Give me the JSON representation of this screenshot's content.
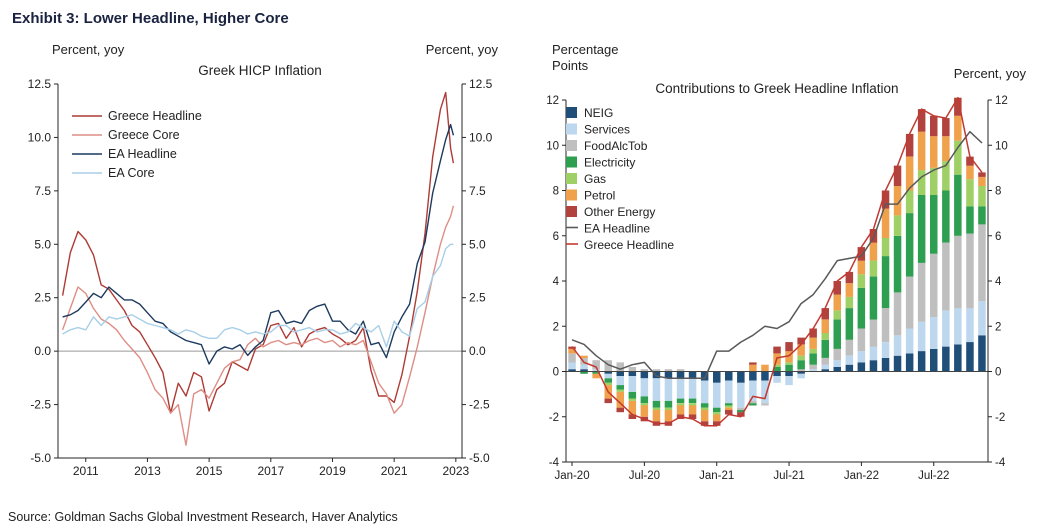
{
  "page": {
    "exhibit_title": "Exhibit 3: Lower Headline, Higher Core",
    "source": "Source: Goldman Sachs Global Investment Research, Haver Analytics"
  },
  "chart_data": [
    {
      "type": "line",
      "title": "Greek HICP Inflation",
      "left_axis_label": "Percent, yoy",
      "right_axis_label": "Percent, yoy",
      "ylim": [
        -5,
        12.5
      ],
      "yticks": [
        -5.0,
        -2.5,
        0.0,
        2.5,
        5.0,
        7.5,
        10.0,
        12.5
      ],
      "xlim": [
        2010.1,
        2023.2
      ],
      "xticks": [
        2011,
        2013,
        2015,
        2017,
        2019,
        2021,
        2023
      ],
      "grid": false,
      "legend_position": "top-left",
      "x": [
        2010.25,
        2010.5,
        2010.75,
        2011,
        2011.25,
        2011.5,
        2011.75,
        2012,
        2012.25,
        2012.5,
        2012.75,
        2013,
        2013.25,
        2013.5,
        2013.75,
        2014,
        2014.25,
        2014.5,
        2014.75,
        2015,
        2015.25,
        2015.5,
        2015.75,
        2016,
        2016.25,
        2016.5,
        2016.75,
        2017,
        2017.25,
        2017.5,
        2017.75,
        2018,
        2018.25,
        2018.5,
        2018.75,
        2019,
        2019.25,
        2019.5,
        2019.75,
        2020,
        2020.25,
        2020.5,
        2020.75,
        2021,
        2021.25,
        2021.5,
        2021.75,
        2022,
        2022.25,
        2022.5,
        2022.67,
        2022.83,
        2022.92
      ],
      "series": [
        {
          "name": "Greece Headline",
          "color": "#AE3B35",
          "values": [
            2.6,
            4.6,
            5.6,
            5.2,
            4.5,
            3.1,
            2.9,
            2.4,
            1.9,
            1.2,
            0.9,
            0.3,
            -0.3,
            -1.0,
            -2.9,
            -1.5,
            -2.1,
            -1.0,
            -1.2,
            -2.8,
            -1.8,
            -1.5,
            -0.5,
            -0.7,
            -0.9,
            0.1,
            0.3,
            1.2,
            1.3,
            0.6,
            1.1,
            0.2,
            0.8,
            1.0,
            1.1,
            0.8,
            0.6,
            0.3,
            0.5,
            1.1,
            -0.9,
            -2.1,
            -2.1,
            -2.4,
            -1.1,
            0.7,
            2.8,
            5.5,
            9.1,
            11.3,
            12.1,
            9.5,
            8.8
          ]
        },
        {
          "name": "Greece Core",
          "color": "#DE8E85",
          "values": [
            1.0,
            2.0,
            3.0,
            2.7,
            2.0,
            1.5,
            1.3,
            1.0,
            0.5,
            0.1,
            -0.3,
            -1.0,
            -1.8,
            -2.2,
            -2.9,
            -2.5,
            -4.4,
            -2.0,
            -1.8,
            -2.2,
            -1.5,
            -0.8,
            -0.5,
            -0.4,
            0.3,
            0.6,
            0.2,
            0.4,
            0.5,
            0.3,
            0.4,
            0.3,
            0.5,
            0.6,
            0.4,
            0.5,
            0.2,
            0.4,
            0.3,
            0.5,
            -0.5,
            -1.5,
            -2.0,
            -2.9,
            -2.5,
            -1.2,
            0.2,
            1.8,
            3.5,
            5.0,
            5.8,
            6.3,
            6.8
          ]
        },
        {
          "name": "EA Headline",
          "color": "#1C3A5E",
          "values": [
            1.6,
            1.7,
            1.9,
            2.3,
            2.7,
            2.5,
            3.0,
            2.7,
            2.4,
            2.4,
            2.2,
            1.8,
            1.4,
            1.3,
            0.9,
            0.7,
            0.5,
            0.4,
            0.3,
            -0.6,
            0.0,
            0.2,
            0.1,
            0.3,
            -0.2,
            0.2,
            0.5,
            1.8,
            1.9,
            1.3,
            1.4,
            1.3,
            1.9,
            2.1,
            2.2,
            1.4,
            1.4,
            1.0,
            0.8,
            1.4,
            0.3,
            0.4,
            -0.3,
            0.9,
            1.6,
            2.2,
            4.1,
            5.1,
            7.4,
            8.9,
            9.9,
            10.6,
            10.1
          ]
        },
        {
          "name": "EA Core",
          "color": "#A8CFE8",
          "values": [
            0.8,
            1.0,
            1.1,
            1.0,
            1.6,
            1.2,
            1.6,
            1.5,
            1.6,
            1.7,
            1.5,
            1.3,
            1.2,
            1.1,
            1.0,
            0.8,
            1.0,
            0.9,
            0.7,
            0.6,
            0.6,
            1.0,
            1.1,
            1.0,
            0.8,
            0.9,
            0.8,
            0.9,
            1.2,
            1.2,
            0.9,
            1.0,
            1.1,
            0.9,
            1.0,
            1.0,
            0.8,
            0.9,
            1.3,
            1.1,
            0.9,
            1.2,
            0.2,
            1.4,
            0.9,
            0.7,
            2.0,
            2.3,
            3.5,
            4.0,
            4.8,
            5.0,
            5.0
          ]
        }
      ]
    },
    {
      "type": "stacked-bar-with-lines",
      "title": "Contributions to Greek Headline Inflation",
      "left_axis_label_line1": "Percentage",
      "left_axis_label_line2": "Points",
      "right_axis_label": "Percent, yoy",
      "ylim": [
        -4,
        12
      ],
      "yticks": [
        -4,
        -2,
        0,
        2,
        4,
        6,
        8,
        10,
        12
      ],
      "grid": false,
      "legend_position": "top-left",
      "categories": [
        "Jan-20",
        "Feb-20",
        "Mar-20",
        "Apr-20",
        "May-20",
        "Jun-20",
        "Jul-20",
        "Aug-20",
        "Sep-20",
        "Oct-20",
        "Nov-20",
        "Dec-20",
        "Jan-21",
        "Feb-21",
        "Mar-21",
        "Apr-21",
        "May-21",
        "Jun-21",
        "Jul-21",
        "Aug-21",
        "Sep-21",
        "Oct-21",
        "Nov-21",
        "Dec-21",
        "Jan-22",
        "Feb-22",
        "Mar-22",
        "Apr-22",
        "May-22",
        "Jun-22",
        "Jul-22",
        "Aug-22",
        "Sep-22",
        "Oct-22",
        "Nov-22"
      ],
      "xticks": [
        "Jan-20",
        "Jul-20",
        "Jan-21",
        "Jul-21",
        "Jan-22",
        "Jul-22"
      ],
      "bar_series": [
        {
          "name": "NEIG",
          "color": "#1F4E79",
          "values": [
            0.1,
            0.1,
            0.0,
            -0.1,
            -0.2,
            -0.2,
            -0.3,
            -0.3,
            -0.3,
            -0.3,
            -0.3,
            -0.4,
            -0.5,
            -0.4,
            -0.5,
            -0.4,
            -0.4,
            -0.2,
            -0.2,
            -0.1,
            0.0,
            0.1,
            0.2,
            0.3,
            0.4,
            0.5,
            0.6,
            0.7,
            0.8,
            0.9,
            1.0,
            1.1,
            1.2,
            1.3,
            1.6
          ]
        },
        {
          "name": "Services",
          "color": "#BDD7EE",
          "values": [
            0.3,
            0.2,
            0.1,
            -0.2,
            -0.4,
            -0.7,
            -0.8,
            -1.0,
            -1.0,
            -0.9,
            -0.9,
            -1.0,
            -1.1,
            -1.0,
            -1.1,
            -0.9,
            -1.0,
            -0.3,
            -0.4,
            -0.2,
            0.1,
            0.2,
            0.3,
            0.4,
            0.5,
            0.6,
            0.7,
            0.9,
            1.1,
            1.3,
            1.4,
            1.6,
            1.6,
            1.5,
            1.5
          ]
        },
        {
          "name": "FoodAlcTob",
          "color": "#BFBFBF",
          "values": [
            0.4,
            0.3,
            0.4,
            0.5,
            0.4,
            0.2,
            0.1,
            0.1,
            0.1,
            0.1,
            0.0,
            0.0,
            0.0,
            0.0,
            -0.1,
            -0.1,
            -0.1,
            0.0,
            0.0,
            0.1,
            0.2,
            0.3,
            0.5,
            0.7,
            1.0,
            1.2,
            1.5,
            1.9,
            2.3,
            2.6,
            2.8,
            3.0,
            3.2,
            3.3,
            3.4
          ]
        },
        {
          "name": "Electricity",
          "color": "#2E9E50",
          "values": [
            0.0,
            -0.1,
            -0.1,
            -0.2,
            -0.2,
            -0.3,
            -0.3,
            -0.3,
            -0.3,
            -0.2,
            -0.2,
            -0.2,
            -0.2,
            -0.1,
            -0.1,
            -0.1,
            0.0,
            0.2,
            0.3,
            0.4,
            0.5,
            0.8,
            1.3,
            1.4,
            1.8,
            1.9,
            2.3,
            2.5,
            2.8,
            3.0,
            2.6,
            2.3,
            2.7,
            1.2,
            0.8
          ]
        },
        {
          "name": "Gas",
          "color": "#9FD066",
          "values": [
            0.0,
            0.0,
            0.0,
            -0.1,
            -0.1,
            -0.1,
            -0.1,
            -0.1,
            -0.1,
            -0.1,
            -0.1,
            -0.1,
            -0.1,
            -0.1,
            0.0,
            0.0,
            0.0,
            0.1,
            0.1,
            0.2,
            0.2,
            0.3,
            0.4,
            0.5,
            0.6,
            0.7,
            0.8,
            0.9,
            1.0,
            1.1,
            1.2,
            1.3,
            1.5,
            1.2,
            0.9
          ]
        },
        {
          "name": "Petrol",
          "color": "#F0A14C",
          "values": [
            0.2,
            0.1,
            -0.2,
            -0.6,
            -0.7,
            -0.6,
            -0.5,
            -0.5,
            -0.5,
            -0.4,
            -0.4,
            -0.5,
            -0.3,
            -0.1,
            0.0,
            0.3,
            0.3,
            0.5,
            0.5,
            0.5,
            0.5,
            0.6,
            0.7,
            0.6,
            0.6,
            0.8,
            1.3,
            1.3,
            1.5,
            1.7,
            1.4,
            1.1,
            1.1,
            0.6,
            0.4
          ]
        },
        {
          "name": "Other Energy",
          "color": "#B2423E",
          "values": [
            0.1,
            0.0,
            0.0,
            -0.2,
            -0.2,
            -0.2,
            -0.2,
            -0.2,
            -0.2,
            -0.2,
            -0.2,
            -0.2,
            -0.2,
            -0.2,
            -0.2,
            0.1,
            0.0,
            0.3,
            0.4,
            0.3,
            0.4,
            0.5,
            0.6,
            0.5,
            0.6,
            0.6,
            0.8,
            0.9,
            1.0,
            1.0,
            0.9,
            0.8,
            0.8,
            0.4,
            0.2
          ]
        }
      ],
      "line_series": [
        {
          "name": "EA Headline",
          "color": "#595959",
          "values": [
            1.4,
            1.2,
            0.7,
            0.3,
            0.1,
            0.3,
            0.4,
            -0.2,
            -0.3,
            -0.3,
            -0.3,
            -0.3,
            0.9,
            0.9,
            1.3,
            1.6,
            2.0,
            1.9,
            2.2,
            3.0,
            3.4,
            4.1,
            4.9,
            5.0,
            5.1,
            5.9,
            7.4,
            7.4,
            8.1,
            8.6,
            8.9,
            9.1,
            9.9,
            10.6,
            10.1
          ]
        },
        {
          "name": "Greece Headline",
          "color": "#C13A32",
          "values": [
            1.1,
            0.4,
            0.2,
            -0.9,
            -1.4,
            -1.9,
            -2.1,
            -2.3,
            -2.3,
            -2.0,
            -2.1,
            -2.4,
            -2.4,
            -1.9,
            -2.0,
            -1.1,
            -1.2,
            0.6,
            0.7,
            1.2,
            1.9,
            2.8,
            4.0,
            4.4,
            5.5,
            6.3,
            8.0,
            9.1,
            10.5,
            11.6,
            11.3,
            11.2,
            12.1,
            9.5,
            8.8
          ]
        }
      ]
    }
  ]
}
